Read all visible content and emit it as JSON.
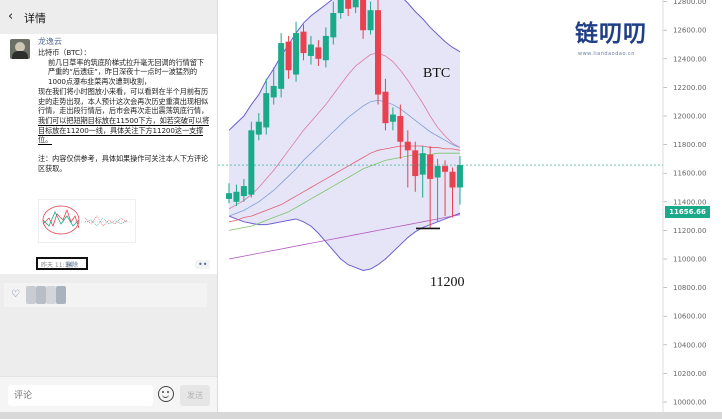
{
  "header": {
    "back_icon": "chevron-left-icon",
    "title": "详情"
  },
  "post": {
    "author": "龙逸云",
    "paragraphs": [
      {
        "text": "比特币（BTC）：",
        "indent": false
      },
      {
        "text": "前几日草率的筑底阶梯式拉升毫无回调的行情留下严重的“后遗症”，昨日深夜十一点时一波猛烈的1000点瀑布韭菜再次遭到收割，",
        "indent": true
      },
      {
        "text": "现在我们将小时图放小来看，可以看到在半个月前有历史的走势出现，本人预计这次会再次历史重演出现相似行情，走出段行情后，后市会再次走出震荡筑底行情，",
        "indent": false,
        "underlined_tail": "我们可以把短期目标放在11500下方，如若突破可以将目标放在11200一线，具体关注下方11200这一支撑位。"
      },
      {
        "text": "注：内容仅供参考，具体如果操作可关注本人下方评论区获取。",
        "indent": false
      }
    ],
    "timestamp": "昨天 11:34",
    "delete_label": "删除",
    "more_label": "••"
  },
  "likes": {
    "heart_icon": "heart-outline-icon"
  },
  "comment_bar": {
    "placeholder": "评论",
    "emoji_icon": "smiley-icon",
    "send_label": "发送"
  },
  "brand": {
    "logo_text": "链叨叨",
    "logo_url": "www.liandaodao.cn",
    "logo_color": "#1f3f86"
  },
  "chart_labels": {
    "symbol": "BTC",
    "support": "11200"
  },
  "colors": {
    "up": "#1aaa8a",
    "down": "#e8414f",
    "band_fill": "#e6e4f7",
    "band_line": "#6b5fd0",
    "price_tag_bg": "#1aaa8a"
  },
  "chart_data": {
    "type": "candlestick",
    "y_axis": {
      "side": "right",
      "ylim": [
        10000,
        12900
      ],
      "ticks": [
        10000,
        10200,
        10400,
        10600,
        10800,
        11000,
        11200,
        11400,
        11600,
        11800,
        12000,
        12200,
        12400,
        12600,
        12800
      ],
      "tick_labels": [
        "10000.00",
        "10200.00",
        "10400.00",
        "10600.00",
        "10800.00",
        "11000.00",
        "11200.00",
        "11400.00",
        "11600.00",
        "11800.00",
        "12000.00",
        "12200.00",
        "12400.00",
        "12600.00",
        "12800.00"
      ]
    },
    "current_price": "11656.66",
    "support_level": 11200,
    "candles": [
      {
        "o": 11420,
        "c": 11460,
        "h": 11530,
        "l": 11390
      },
      {
        "o": 11400,
        "c": 11470,
        "h": 11520,
        "l": 11370
      },
      {
        "o": 11440,
        "c": 11510,
        "h": 11560,
        "l": 11400
      },
      {
        "o": 11450,
        "c": 11900,
        "h": 11960,
        "l": 11430
      },
      {
        "o": 11870,
        "c": 11960,
        "h": 12020,
        "l": 11830
      },
      {
        "o": 11920,
        "c": 12160,
        "h": 12260,
        "l": 11870
      },
      {
        "o": 12130,
        "c": 12210,
        "h": 12340,
        "l": 12080
      },
      {
        "o": 12190,
        "c": 12510,
        "h": 12580,
        "l": 12130
      },
      {
        "o": 12520,
        "c": 12320,
        "h": 12560,
        "l": 12260
      },
      {
        "o": 12290,
        "c": 12580,
        "h": 12660,
        "l": 12240
      },
      {
        "o": 12590,
        "c": 12440,
        "h": 12640,
        "l": 12390
      },
      {
        "o": 12420,
        "c": 12500,
        "h": 12560,
        "l": 12360
      },
      {
        "o": 12480,
        "c": 12400,
        "h": 12530,
        "l": 12350
      },
      {
        "o": 12390,
        "c": 12560,
        "h": 12620,
        "l": 12340
      },
      {
        "o": 12550,
        "c": 12720,
        "h": 12800,
        "l": 12500
      },
      {
        "o": 12720,
        "c": 12900,
        "h": 12960,
        "l": 12680
      },
      {
        "o": 12880,
        "c": 12750,
        "h": 12950,
        "l": 12700
      },
      {
        "o": 12760,
        "c": 12820,
        "h": 12900,
        "l": 12720
      },
      {
        "o": 12830,
        "c": 12600,
        "h": 12860,
        "l": 12540
      },
      {
        "o": 12600,
        "c": 12740,
        "h": 12800,
        "l": 12570
      },
      {
        "o": 12740,
        "c": 12150,
        "h": 12820,
        "l": 12080
      },
      {
        "o": 12170,
        "c": 11950,
        "h": 12260,
        "l": 11900
      },
      {
        "o": 11960,
        "c": 12010,
        "h": 12060,
        "l": 11900
      },
      {
        "o": 12000,
        "c": 11820,
        "h": 12080,
        "l": 11700
      },
      {
        "o": 11820,
        "c": 11760,
        "h": 11900,
        "l": 11500
      },
      {
        "o": 11760,
        "c": 11580,
        "h": 11820,
        "l": 11470
      },
      {
        "o": 11590,
        "c": 11740,
        "h": 11790,
        "l": 11430
      },
      {
        "o": 11730,
        "c": 11560,
        "h": 11790,
        "l": 11220
      },
      {
        "o": 11570,
        "c": 11650,
        "h": 11700,
        "l": 11260
      },
      {
        "o": 11650,
        "c": 11610,
        "h": 11690,
        "l": 11300
      },
      {
        "o": 11610,
        "c": 11500,
        "h": 11640,
        "l": 11290
      },
      {
        "o": 11500,
        "c": 11657,
        "h": 11720,
        "l": 11380
      }
    ],
    "bollinger_upper": [
      11900,
      11950,
      12000,
      12080,
      12150,
      12250,
      12330,
      12420,
      12500,
      12580,
      12650,
      12700,
      12740,
      12780,
      12820,
      12870,
      12900,
      12920,
      12930,
      12940,
      12930,
      12910,
      12880,
      12840,
      12790,
      12730,
      12680,
      12620,
      12570,
      12520,
      12480,
      12450
    ],
    "bollinger_lower": [
      11300,
      11280,
      11260,
      11250,
      11240,
      11240,
      11250,
      11260,
      11270,
      11280,
      11260,
      11230,
      11180,
      11120,
      11060,
      11000,
      10960,
      10940,
      10920,
      10930,
      10960,
      11000,
      11050,
      11100,
      11150,
      11190,
      11220,
      11240,
      11260,
      11280,
      11300,
      11320
    ],
    "ma_lines": [
      {
        "color": "#d97aa0",
        "values": [
          11350,
          11380,
          11410,
          11450,
          11500,
          11560,
          11620,
          11690,
          11760,
          11830,
          11900,
          11960,
          12020,
          12080,
          12150,
          12220,
          12290,
          12350,
          12390,
          12430,
          12440,
          12420,
          12380,
          12320,
          12250,
          12170,
          12090,
          12000,
          11920,
          11860,
          11810,
          11780
        ]
      },
      {
        "color": "#7aa0d9",
        "values": [
          11300,
          11320,
          11340,
          11370,
          11400,
          11440,
          11480,
          11530,
          11580,
          11630,
          11690,
          11740,
          11790,
          11840,
          11890,
          11940,
          11990,
          12030,
          12070,
          12100,
          12110,
          12100,
          12080,
          12050,
          12010,
          11970,
          11930,
          11890,
          11860,
          11830,
          11800,
          11780
        ]
      },
      {
        "color": "#e06070",
        "values": [
          11260,
          11270,
          11290,
          11300,
          11320,
          11340,
          11360,
          11380,
          11410,
          11440,
          11470,
          11500,
          11530,
          11560,
          11590,
          11620,
          11650,
          11680,
          11710,
          11740,
          11760,
          11770,
          11780,
          11790,
          11790,
          11790,
          11790,
          11780,
          11780,
          11770,
          11770,
          11760
        ]
      },
      {
        "color": "#7bc46b",
        "values": [
          11200,
          11210,
          11220,
          11230,
          11250,
          11270,
          11290,
          11310,
          11330,
          11360,
          11390,
          11420,
          11450,
          11480,
          11510,
          11540,
          11570,
          11600,
          11630,
          11650,
          11670,
          11690,
          11700,
          11710,
          11720,
          11730,
          11730,
          11730,
          11740,
          11740,
          11740,
          11740
        ]
      },
      {
        "color": "#b05cc0",
        "values": [
          11000,
          11010,
          11020,
          11030,
          11040,
          11050,
          11060,
          11070,
          11080,
          11090,
          11100,
          11110,
          11120,
          11130,
          11140,
          11150,
          11160,
          11170,
          11180,
          11190,
          11200,
          11210,
          11220,
          11230,
          11240,
          11250,
          11260,
          11270,
          11280,
          11290,
          11300,
          11310
        ]
      }
    ]
  }
}
